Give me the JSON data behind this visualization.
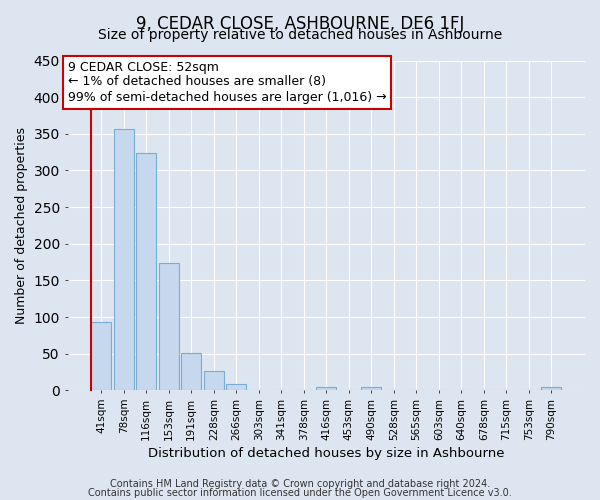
{
  "title1": "9, CEDAR CLOSE, ASHBOURNE, DE6 1FJ",
  "title2": "Size of property relative to detached houses in Ashbourne",
  "xlabel": "Distribution of detached houses by size in Ashbourne",
  "ylabel": "Number of detached properties",
  "bar_labels": [
    "41sqm",
    "78sqm",
    "116sqm",
    "153sqm",
    "191sqm",
    "228sqm",
    "266sqm",
    "303sqm",
    "341sqm",
    "378sqm",
    "416sqm",
    "453sqm",
    "490sqm",
    "528sqm",
    "565sqm",
    "603sqm",
    "640sqm",
    "678sqm",
    "715sqm",
    "753sqm",
    "790sqm"
  ],
  "bar_values": [
    93,
    356,
    324,
    174,
    51,
    26,
    9,
    0,
    0,
    0,
    4,
    0,
    4,
    0,
    0,
    0,
    0,
    0,
    0,
    0,
    4
  ],
  "bar_color": "#c5d8ee",
  "bar_edge_color": "#7aadcf",
  "highlight_line_color": "#cc0000",
  "annotation_line1": "9 CEDAR CLOSE: 52sqm",
  "annotation_line2": "← 1% of detached houses are smaller (8)",
  "annotation_line3": "99% of semi-detached houses are larger (1,016) →",
  "annotation_box_color": "#ffffff",
  "annotation_box_edge_color": "#cc0000",
  "ylim": [
    0,
    450
  ],
  "yticks": [
    0,
    50,
    100,
    150,
    200,
    250,
    300,
    350,
    400,
    450
  ],
  "background_color": "#dde6f0",
  "plot_bg_color": "#dde6f0",
  "grid_color": "#ffffff",
  "footer1": "Contains HM Land Registry data © Crown copyright and database right 2024.",
  "footer2": "Contains public sector information licensed under the Open Government Licence v3.0.",
  "title1_fontsize": 12,
  "title2_fontsize": 10,
  "xlabel_fontsize": 9.5,
  "ylabel_fontsize": 9,
  "annotation_fontsize": 9,
  "footer_fontsize": 7
}
